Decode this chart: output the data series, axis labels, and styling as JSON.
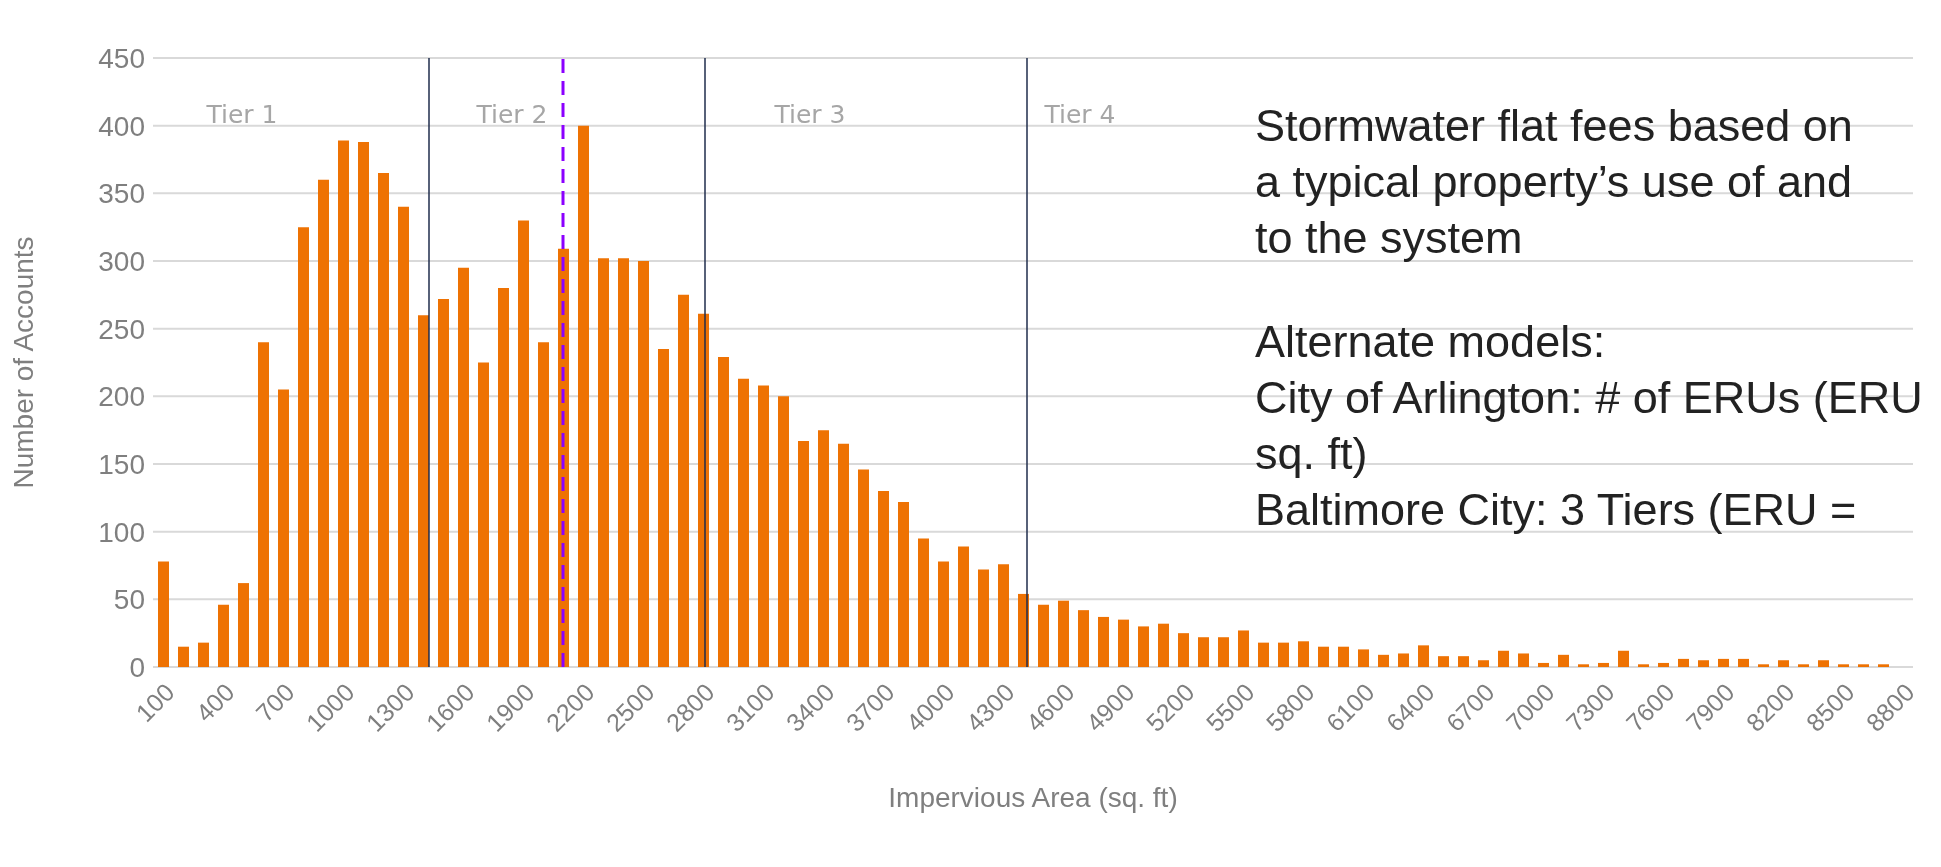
{
  "chart_data": {
    "type": "bar",
    "xlabel": "Impervious Area (sq. ft)",
    "ylabel": "Number  of Accounts",
    "x": [
      100,
      200,
      300,
      400,
      500,
      600,
      700,
      800,
      900,
      1000,
      1100,
      1200,
      1300,
      1400,
      1500,
      1600,
      1700,
      1800,
      1900,
      2000,
      2100,
      2200,
      2300,
      2400,
      2500,
      2600,
      2700,
      2800,
      2900,
      3000,
      3100,
      3200,
      3300,
      3400,
      3500,
      3600,
      3700,
      3800,
      3900,
      4000,
      4100,
      4200,
      4300,
      4400,
      4500,
      4600,
      4700,
      4800,
      4900,
      5000,
      5100,
      5200,
      5300,
      5400,
      5500,
      5600,
      5700,
      5800,
      5900,
      6000,
      6100,
      6200,
      6300,
      6400,
      6500,
      6600,
      6700,
      6800,
      6900,
      7000,
      7100,
      7200,
      7300,
      7400,
      7500,
      7600,
      7700,
      7800,
      7900,
      8000,
      8100,
      8200,
      8300,
      8400,
      8500,
      8600,
      8700
    ],
    "values": [
      78,
      15,
      18,
      46,
      62,
      240,
      205,
      325,
      360,
      389,
      388,
      365,
      340,
      260,
      272,
      295,
      225,
      280,
      330,
      240,
      309,
      400,
      302,
      302,
      300,
      235,
      275,
      261,
      229,
      213,
      208,
      200,
      167,
      175,
      165,
      146,
      130,
      122,
      95,
      78,
      89,
      72,
      76,
      54,
      46,
      49,
      42,
      37,
      35,
      30,
      32,
      25,
      22,
      22,
      27,
      18,
      18,
      19,
      15,
      15,
      13,
      9,
      10,
      16,
      8,
      8,
      5,
      12,
      10,
      3,
      9,
      2,
      3,
      12,
      2,
      3,
      6,
      5,
      6,
      6,
      2,
      5,
      2,
      5,
      2,
      2,
      2
    ],
    "color": "#ee7203",
    "xlim": [
      50,
      8850
    ],
    "xticks": [
      100,
      400,
      700,
      1000,
      1300,
      1600,
      1900,
      2200,
      2500,
      2800,
      3100,
      3400,
      3700,
      4000,
      4300,
      4600,
      4900,
      5200,
      5500,
      5800,
      6100,
      6400,
      6700,
      7000,
      7300,
      7600,
      7900,
      8200,
      8500,
      8800
    ],
    "ylim": [
      0,
      450
    ],
    "yticks": [
      0,
      50,
      100,
      150,
      200,
      250,
      300,
      350,
      400,
      450
    ],
    "grid": "y",
    "ref_lines": [
      {
        "axis": "x",
        "value": 1430,
        "color": "#1f2d4d"
      },
      {
        "axis": "x",
        "value": 2100,
        "color": "#8b00ff",
        "line_style": "dashed"
      },
      {
        "axis": "x",
        "value": 2810,
        "color": "#1f2d4d"
      },
      {
        "axis": "x",
        "value": 4420,
        "color": "#1f2d4d"
      }
    ],
    "annotations": [
      "Tier 1",
      "Tier 2",
      "Tier 3",
      "Tier 4",
      "Stormwater flat fees based on\na typical property’s use of and\nto the system",
      "Alternate models:\nCity of Arlington: # of ERUs (ERU\nsq. ft)\nBaltimore City: 3 Tiers (ERU ="
    ]
  }
}
